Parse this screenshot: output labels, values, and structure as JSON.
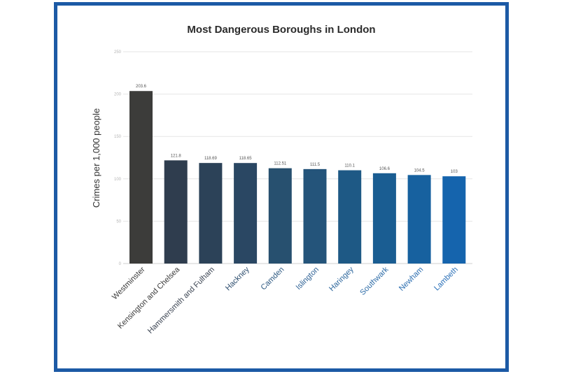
{
  "chart_data": {
    "type": "bar",
    "title": "Most Dangerous Boroughs in London",
    "ylabel": "Crimes per 1,000 people",
    "xlabel": "",
    "ylim": [
      0,
      250
    ],
    "yticks": [
      0,
      50,
      100,
      150,
      200,
      250
    ],
    "grid": true,
    "categories": [
      "Westminster",
      "Kensington and Chelsea",
      "Hammersmith and Fulham",
      "Hackney",
      "Camden",
      "Islington",
      "Haringey",
      "Southwark",
      "Newham",
      "Lambeth"
    ],
    "values": [
      203.6,
      121.8,
      118.69,
      118.65,
      112.51,
      111.5,
      110.1,
      106.6,
      104.5,
      103
    ],
    "value_labels": [
      "203.6",
      "121.8",
      "118.69",
      "118.65",
      "112.51",
      "111.5",
      "110.1",
      "106.6",
      "104.5",
      "103"
    ],
    "colors": [
      "#3c3c3a",
      "#2f3d4e",
      "#2c4258",
      "#2a4763",
      "#27506f",
      "#24547a",
      "#1e5985",
      "#1a5d92",
      "#17619f",
      "#1564ad"
    ],
    "label_colors": [
      "#3a3a3a",
      "#3a3a3a",
      "#3d4654",
      "#2f4f6f",
      "#2f5a82",
      "#2d6195",
      "#2d679d",
      "#2b6aa6",
      "#2a6db0",
      "#2a70b8"
    ]
  }
}
